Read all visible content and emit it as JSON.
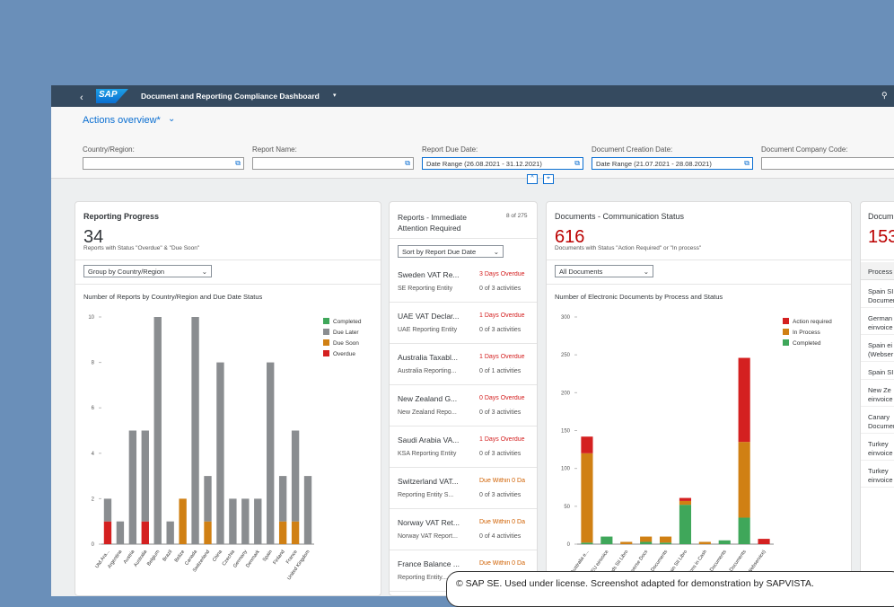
{
  "header": {
    "logo": "SAP",
    "title": "Document and Reporting Compliance Dashboard"
  },
  "variant": "Actions overview*",
  "filters": [
    {
      "label": "Country/Region:"
    },
    {
      "label": "Report Name:"
    },
    {
      "label": "Report Due Date:",
      "value": "Date Range (26.08.2021 - 31.12.2021)"
    },
    {
      "label": "Document Creation Date:",
      "value": "Date Range (21.07.2021 - 28.08.2021)"
    },
    {
      "label": "Document Company Code:"
    }
  ],
  "cards": [
    {
      "title": "Reporting Progress",
      "kpi": 34,
      "kpi_label": "Reports with Status \"Overdue\" & \"Due Soon\"",
      "select": "Group by Country/Region",
      "chart": {
        "type": "bar",
        "stacked": true,
        "title": "Number of Reports by Country/Region and Due Date Status",
        "categories": [
          "Utd.Ara...",
          "Argentina",
          "Austria",
          "Australia",
          "Belgium",
          "Brazil",
          "Belize",
          "Canada",
          "Switzerland",
          "China",
          "Czechia",
          "Germany",
          "Denmark",
          "Spain",
          "Finland",
          "France",
          "United Kingdom"
        ],
        "series": [
          {
            "name": "Completed",
            "color": "#3fa75a",
            "values": [
              0,
              0,
              0,
              0,
              0,
              0,
              0,
              0,
              0,
              0,
              0,
              0,
              0,
              0,
              0,
              0,
              0
            ]
          },
          {
            "name": "Due Later",
            "color": "#8a8d90",
            "values": [
              1,
              1,
              5,
              4,
              10,
              1,
              0,
              10,
              2,
              8,
              2,
              2,
              2,
              8,
              2,
              4,
              3
            ]
          },
          {
            "name": "Due Soon",
            "color": "#d08014",
            "values": [
              0,
              0,
              0,
              0,
              0,
              0,
              2,
              0,
              1,
              0,
              0,
              0,
              0,
              0,
              1,
              1,
              0
            ]
          },
          {
            "name": "Overdue",
            "color": "#d42020",
            "values": [
              1,
              0,
              0,
              1,
              0,
              0,
              0,
              0,
              0,
              0,
              0,
              0,
              0,
              0,
              0,
              0,
              0
            ]
          }
        ],
        "ylim": [
          0,
          10
        ],
        "yticks": [
          0,
          2,
          4,
          6,
          8,
          10
        ],
        "grid": false,
        "legend": "top-right"
      }
    },
    {
      "title": "Reports - Immediate Attention Required",
      "count": "8 of 275",
      "select": "Sort by Report Due Date",
      "items": [
        {
          "title": "Sweden VAT Re...",
          "entity": "SE Reporting Entity",
          "status": "3 Days Overdue",
          "tone": "error",
          "activities": "0 of 3 activities"
        },
        {
          "title": "UAE VAT Declar...",
          "entity": "UAE Reporting Entity",
          "status": "1 Days Overdue",
          "tone": "error",
          "activities": "0 of 3 activities"
        },
        {
          "title": "Australia Taxabl...",
          "entity": "Australia Reporting...",
          "status": "1 Days Overdue",
          "tone": "error",
          "activities": "0 of 1 activities"
        },
        {
          "title": "New Zealand G...",
          "entity": "New Zealand Repo...",
          "status": "0 Days Overdue",
          "tone": "error",
          "activities": "0 of 3 activities"
        },
        {
          "title": "Saudi Arabia VA...",
          "entity": "KSA Reporting Entity",
          "status": "1 Days Overdue",
          "tone": "error",
          "activities": "0 of 3 activities"
        },
        {
          "title": "Switzerland VAT...",
          "entity": "Reporting Entity S...",
          "status": "Due Within 0 Da",
          "tone": "warning",
          "activities": "0 of 3 activities"
        },
        {
          "title": "Norway VAT Ret...",
          "entity": "Norway VAT Report...",
          "status": "Due Within 0 Da",
          "tone": "warning",
          "activities": "0 of 4 activities"
        },
        {
          "title": "France Balance ...",
          "entity": "Reporting Entity...",
          "status": "Due Within 0 Da",
          "tone": "warning"
        }
      ]
    },
    {
      "title": "Documents - Communication Status",
      "kpi": 616,
      "kpi_label": "Documents with Status \"Action Required\" or \"In process\"",
      "select": "All Documents",
      "chart": {
        "type": "bar",
        "stacked": true,
        "title": "Number of Electronic Documents by Process and Status",
        "categories": [
          "Australia e...",
          "Germany EU einvoice",
          "Canary Islands SII Libro",
          "Canary Islands SII Reverse Docs",
          "Canary Islands SII Documents",
          "Spain SII Libro",
          "Spain SII Collections in Cash",
          "Spain SII Reverse Documents",
          "Spain SII Documents",
          "Spain einvoice (Webservice)"
        ],
        "series": [
          {
            "name": "Action required",
            "color": "#d42020",
            "values": [
              22,
              0,
              0,
              0,
              0,
              4,
              0,
              0,
              111,
              7
            ]
          },
          {
            "name": "In Process",
            "color": "#d08014",
            "values": [
              118,
              0,
              3,
              7,
              8,
              5,
              3,
              0,
              100,
              0
            ]
          },
          {
            "name": "Completed",
            "color": "#3fa75a",
            "values": [
              2,
              10,
              0,
              3,
              2,
              52,
              0,
              5,
              35,
              0
            ]
          }
        ],
        "ylim": [
          0,
          300
        ],
        "yticks": [
          0,
          50,
          100,
          150,
          200,
          250,
          300
        ],
        "grid": false,
        "legend": "top-right"
      }
    },
    {
      "title": "Docum",
      "kpi": 153,
      "column": "Process",
      "items": [
        [
          "Spain SI",
          "Documen"
        ],
        [
          "German",
          "einvoice"
        ],
        [
          "Spain ei",
          "(Webser"
        ],
        [
          "Spain SI"
        ],
        [
          "New Ze",
          "einvoice"
        ],
        [
          "Canary",
          "Documen"
        ],
        [
          "Turkey",
          "einvoice"
        ],
        [
          "Turkey",
          "einvoice"
        ]
      ]
    }
  ],
  "copyright": "© SAP SE. Used under license. Screenshot adapted for demonstration by SAPVISTA."
}
